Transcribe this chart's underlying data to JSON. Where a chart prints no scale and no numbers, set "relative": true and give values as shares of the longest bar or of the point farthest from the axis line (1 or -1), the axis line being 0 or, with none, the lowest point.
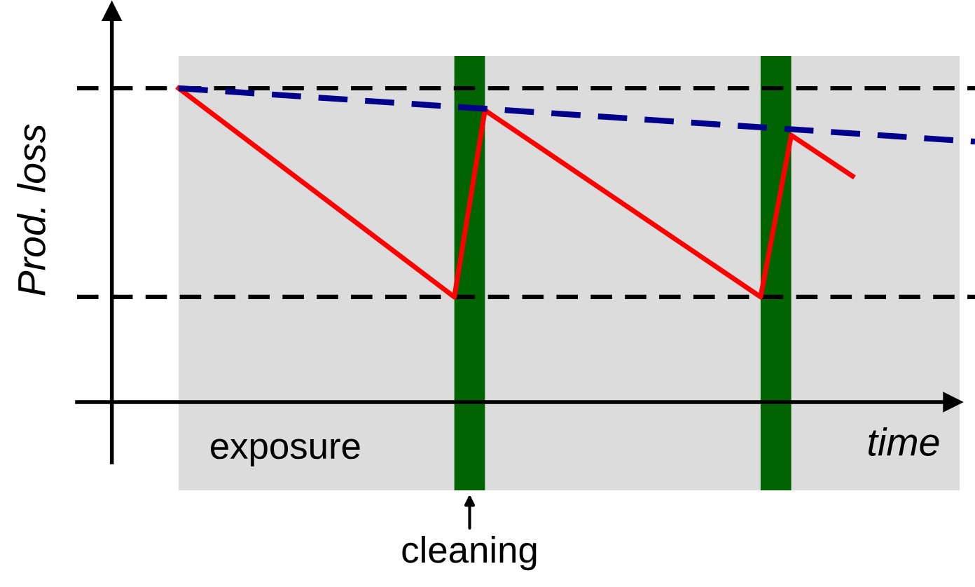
{
  "chart_data": {
    "type": "line",
    "relative": true,
    "xlabel": "time",
    "ylabel": "Prod. loss",
    "categories": [
      null,
      null,
      null,
      null,
      null,
      null,
      null,
      null,
      null,
      null,
      null,
      null,
      null,
      null,
      null,
      null,
      null,
      null,
      null,
      null,
      null,
      null,
      null,
      null,
      null,
      null,
      null
    ],
    "series": [
      {
        "color": "#ff0000",
        "line_style": "solid",
        "values": [
          1.0,
          null,
          null,
          null,
          null,
          null,
          null,
          null,
          null,
          0.335,
          0.93,
          null,
          null,
          null,
          null,
          null,
          null,
          null,
          null,
          0.335,
          0.85,
          null,
          0.72,
          null,
          null,
          null,
          null
        ]
      },
      {
        "color": "#00008b",
        "line_style": "dashed",
        "values": [
          1.0,
          null,
          null,
          null,
          null,
          null,
          null,
          null,
          null,
          null,
          null,
          null,
          null,
          null,
          null,
          null,
          null,
          null,
          null,
          null,
          null,
          null,
          null,
          null,
          null,
          null,
          0.83
        ]
      }
    ],
    "ref_lines": [
      {
        "axis": "y",
        "value": 1.0,
        "color": "#000000",
        "line_style": "dashed"
      },
      {
        "axis": "y",
        "value": 0.335,
        "color": "#000000",
        "line_style": "dashed"
      }
    ],
    "annotations": [
      "exposure",
      "cleaning"
    ],
    "marker": "none"
  }
}
